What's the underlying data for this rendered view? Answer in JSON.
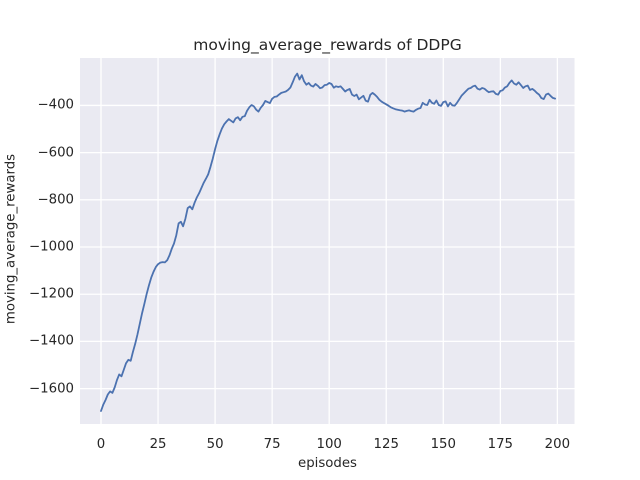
{
  "figure": {
    "background": "#ffffff"
  },
  "chart_data": {
    "type": "line",
    "title": "moving_average_rewards of DDPG",
    "xlabel": "episodes",
    "ylabel": "moving_average_rewards",
    "x_ticks": [
      0,
      25,
      50,
      75,
      100,
      125,
      150,
      175,
      200
    ],
    "y_ticks": [
      -400,
      -600,
      -800,
      -1000,
      -1200,
      -1400,
      -1600
    ],
    "xlim": [
      -9.2,
      207.5
    ],
    "ylim": [
      -1750,
      -199
    ],
    "grid": true,
    "legend": "none",
    "axes_background": "#eaeaf2",
    "grid_color": "#ffffff",
    "line_color": "#4c72b0",
    "text_color": "#262626",
    "series": [
      {
        "name": "moving_average_rewards",
        "x_start": 0,
        "x_step": 1,
        "values": [
          -1695,
          -1668,
          -1648,
          -1625,
          -1612,
          -1618,
          -1595,
          -1563,
          -1540,
          -1548,
          -1520,
          -1492,
          -1478,
          -1482,
          -1445,
          -1410,
          -1370,
          -1325,
          -1280,
          -1240,
          -1200,
          -1163,
          -1130,
          -1105,
          -1085,
          -1073,
          -1066,
          -1064,
          -1065,
          -1056,
          -1035,
          -1008,
          -985,
          -950,
          -900,
          -893,
          -912,
          -880,
          -835,
          -828,
          -840,
          -812,
          -790,
          -772,
          -750,
          -728,
          -710,
          -692,
          -660,
          -625,
          -585,
          -550,
          -522,
          -498,
          -480,
          -468,
          -458,
          -465,
          -472,
          -455,
          -450,
          -463,
          -448,
          -445,
          -423,
          -408,
          -398,
          -404,
          -418,
          -426,
          -410,
          -398,
          -381,
          -386,
          -390,
          -372,
          -364,
          -362,
          -354,
          -347,
          -344,
          -341,
          -334,
          -324,
          -302,
          -278,
          -265,
          -290,
          -272,
          -298,
          -312,
          -305,
          -316,
          -320,
          -309,
          -317,
          -327,
          -324,
          -314,
          -312,
          -305,
          -309,
          -325,
          -319,
          -322,
          -319,
          -330,
          -341,
          -334,
          -330,
          -354,
          -360,
          -354,
          -374,
          -367,
          -359,
          -380,
          -384,
          -355,
          -347,
          -354,
          -364,
          -376,
          -384,
          -390,
          -395,
          -401,
          -408,
          -412,
          -416,
          -418,
          -420,
          -422,
          -426,
          -423,
          -421,
          -424,
          -426,
          -419,
          -414,
          -411,
          -389,
          -396,
          -398,
          -376,
          -389,
          -393,
          -379,
          -398,
          -402,
          -386,
          -383,
          -404,
          -389,
          -400,
          -401,
          -389,
          -374,
          -359,
          -349,
          -339,
          -329,
          -326,
          -319,
          -316,
          -329,
          -333,
          -326,
          -329,
          -337,
          -344,
          -341,
          -340,
          -351,
          -354,
          -339,
          -336,
          -324,
          -319,
          -304,
          -294,
          -307,
          -312,
          -302,
          -314,
          -326,
          -319,
          -316,
          -334,
          -330,
          -337,
          -347,
          -354,
          -369,
          -373,
          -354,
          -350,
          -359,
          -368,
          -371
        ]
      }
    ]
  }
}
